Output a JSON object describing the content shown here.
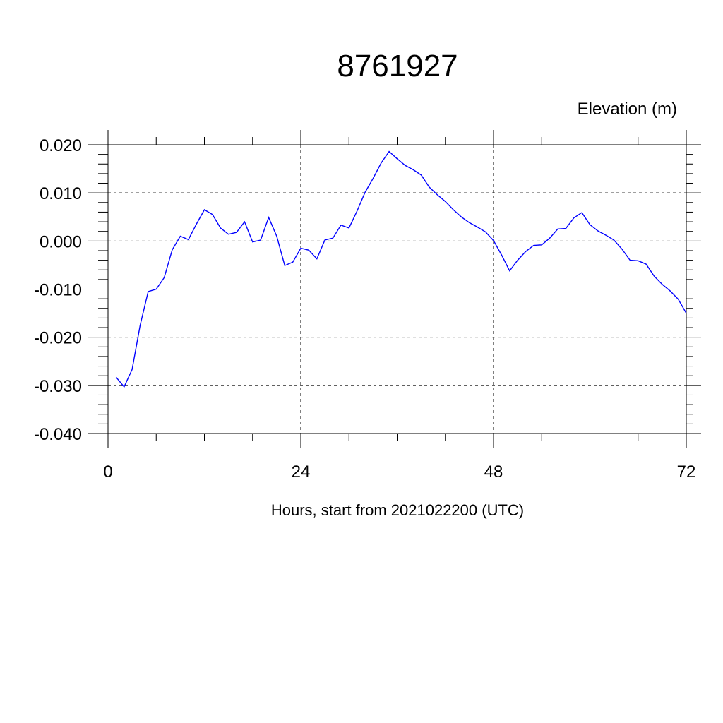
{
  "chart_data": {
    "type": "line",
    "title": "8761927",
    "units_label": "Elevation (m)",
    "xlabel": "Hours, start from 2021022200 (UTC)",
    "ylabel": "",
    "xlim": [
      0,
      72
    ],
    "ylim": [
      -0.04,
      0.02
    ],
    "x_ticks": [
      0,
      24,
      48,
      72
    ],
    "x_tick_labels": [
      "0",
      "24",
      "48",
      "72"
    ],
    "y_ticks": [
      0.02,
      0.01,
      0.0,
      -0.01,
      -0.02,
      -0.03,
      -0.04
    ],
    "y_tick_labels": [
      "0.020",
      "0.010",
      "0.000",
      "-0.010",
      "-0.020",
      "-0.030",
      "-0.040"
    ],
    "grid": true,
    "line_color": "#0000ff",
    "series": [
      {
        "x": [
          1,
          2,
          3,
          4,
          5,
          6,
          7,
          8,
          9,
          10,
          11,
          12,
          13,
          14,
          15,
          16,
          17,
          18,
          19,
          20,
          21,
          22,
          23,
          24,
          25,
          26,
          27,
          28,
          29,
          30,
          31,
          32,
          33,
          34,
          35,
          36,
          37,
          38,
          39,
          40,
          41,
          42,
          43,
          44,
          45,
          46,
          47,
          48,
          49,
          50,
          51,
          52,
          53,
          54,
          55,
          56,
          57,
          58,
          59,
          60,
          61,
          62,
          63,
          64,
          65,
          66,
          67,
          68,
          69,
          70,
          71,
          72
        ],
        "values": [
          -0.0283,
          -0.0303,
          -0.0267,
          -0.0175,
          -0.0105,
          -0.01,
          -0.0076,
          -0.0018,
          0.001,
          0.0003,
          0.0035,
          0.0065,
          0.0055,
          0.0027,
          0.0014,
          0.0018,
          0.004,
          -0.0002,
          0.0002,
          0.0049,
          0.001,
          -0.0051,
          -0.0044,
          -0.0015,
          -0.0019,
          -0.0037,
          0.0002,
          0.0006,
          0.0033,
          0.0027,
          0.0062,
          0.0101,
          0.013,
          0.0162,
          0.0186,
          0.0171,
          0.0157,
          0.0148,
          0.0137,
          0.0112,
          0.0096,
          0.0082,
          0.0065,
          0.005,
          0.0038,
          0.0029,
          0.0019,
          0.0001,
          -0.0029,
          -0.0062,
          -0.004,
          -0.0022,
          -0.0009,
          -0.0008,
          0.0006,
          0.0025,
          0.0026,
          0.0048,
          0.0059,
          0.0034,
          0.0021,
          0.0012,
          0.0002,
          -0.0017,
          -0.004,
          -0.0041,
          -0.0048,
          -0.0073,
          -0.009,
          -0.0104,
          -0.0121,
          -0.015
        ]
      }
    ]
  }
}
